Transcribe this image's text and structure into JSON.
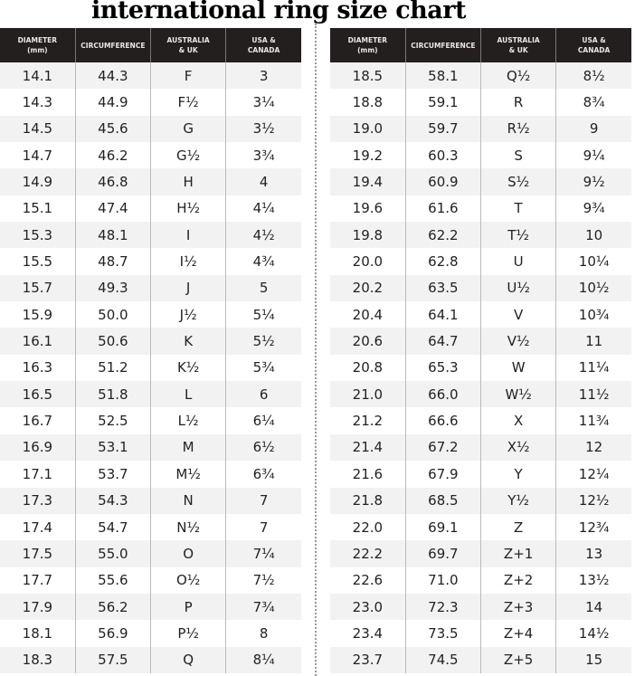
{
  "title": "international ring size chart",
  "headers": [
    [
      "DIAMETER",
      "(mm)"
    ],
    [
      "CIRCUMFERENCE",
      ""
    ],
    [
      "AUSTRALIA",
      "& UK"
    ],
    [
      "USA &",
      "CANADA"
    ]
  ],
  "left_rows": [
    [
      "14.1",
      "44.3",
      "F",
      "3"
    ],
    [
      "14.3",
      "44.9",
      "F½",
      "3¼"
    ],
    [
      "14.5",
      "45.6",
      "G",
      "3½"
    ],
    [
      "14.7",
      "46.2",
      "G½",
      "3¾"
    ],
    [
      "14.9",
      "46.8",
      "H",
      "4"
    ],
    [
      "15.1",
      "47.4",
      "H½",
      "4¼"
    ],
    [
      "15.3",
      "48.1",
      "I",
      "4½"
    ],
    [
      "15.5",
      "48.7",
      "I½",
      "4¾"
    ],
    [
      "15.7",
      "49.3",
      "J",
      "5"
    ],
    [
      "15.9",
      "50.0",
      "J½",
      "5¼"
    ],
    [
      "16.1",
      "50.6",
      "K",
      "5½"
    ],
    [
      "16.3",
      "51.2",
      "K½",
      "5¾"
    ],
    [
      "16.5",
      "51.8",
      "L",
      "6"
    ],
    [
      "16.7",
      "52.5",
      "L½",
      "6¼"
    ],
    [
      "16.9",
      "53.1",
      "M",
      "6½"
    ],
    [
      "17.1",
      "53.7",
      "M½",
      "6¾"
    ],
    [
      "17.3",
      "54.3",
      "N",
      "7"
    ],
    [
      "17.4",
      "54.7",
      "N½",
      "7"
    ],
    [
      "17.5",
      "55.0",
      "O",
      "7¼"
    ],
    [
      "17.7",
      "55.6",
      "O½",
      "7½"
    ],
    [
      "17.9",
      "56.2",
      "P",
      "7¾"
    ],
    [
      "18.1",
      "56.9",
      "P½",
      "8"
    ],
    [
      "18.3",
      "57.5",
      "Q",
      "8¼"
    ]
  ],
  "right_rows": [
    [
      "18.5",
      "58.1",
      "Q½",
      "8½"
    ],
    [
      "18.8",
      "59.1",
      "R",
      "8¾"
    ],
    [
      "19.0",
      "59.7",
      "R½",
      "9"
    ],
    [
      "19.2",
      "60.3",
      "S",
      "9¼"
    ],
    [
      "19.4",
      "60.9",
      "S½",
      "9½"
    ],
    [
      "19.6",
      "61.6",
      "T",
      "9¾"
    ],
    [
      "19.8",
      "62.2",
      "T½",
      "10"
    ],
    [
      "20.0",
      "62.8",
      "U",
      "10¼"
    ],
    [
      "20.2",
      "63.5",
      "U½",
      "10½"
    ],
    [
      "20.4",
      "64.1",
      "V",
      "10¾"
    ],
    [
      "20.6",
      "64.7",
      "V½",
      "11"
    ],
    [
      "20.8",
      "65.3",
      "W",
      "11¼"
    ],
    [
      "21.0",
      "66.0",
      "W½",
      "11½"
    ],
    [
      "21.2",
      "66.6",
      "X",
      "11¾"
    ],
    [
      "21.4",
      "67.2",
      "X½",
      "12"
    ],
    [
      "21.6",
      "67.9",
      "Y",
      "12¼"
    ],
    [
      "21.8",
      "68.5",
      "Y½",
      "12½"
    ],
    [
      "22.0",
      "69.1",
      "Z",
      "12¾"
    ],
    [
      "22.2",
      "69.7",
      "Z+1",
      "13"
    ],
    [
      "22.6",
      "71.0",
      "Z+2",
      "13½"
    ],
    [
      "23.0",
      "72.3",
      "Z+3",
      "14"
    ],
    [
      "23.4",
      "73.5",
      "Z+4",
      "14½"
    ],
    [
      "23.7",
      "74.5",
      "Z+5",
      "15"
    ]
  ],
  "colors": {
    "header_bg": "#231f1e",
    "alt_row": "#f2f2f2"
  }
}
